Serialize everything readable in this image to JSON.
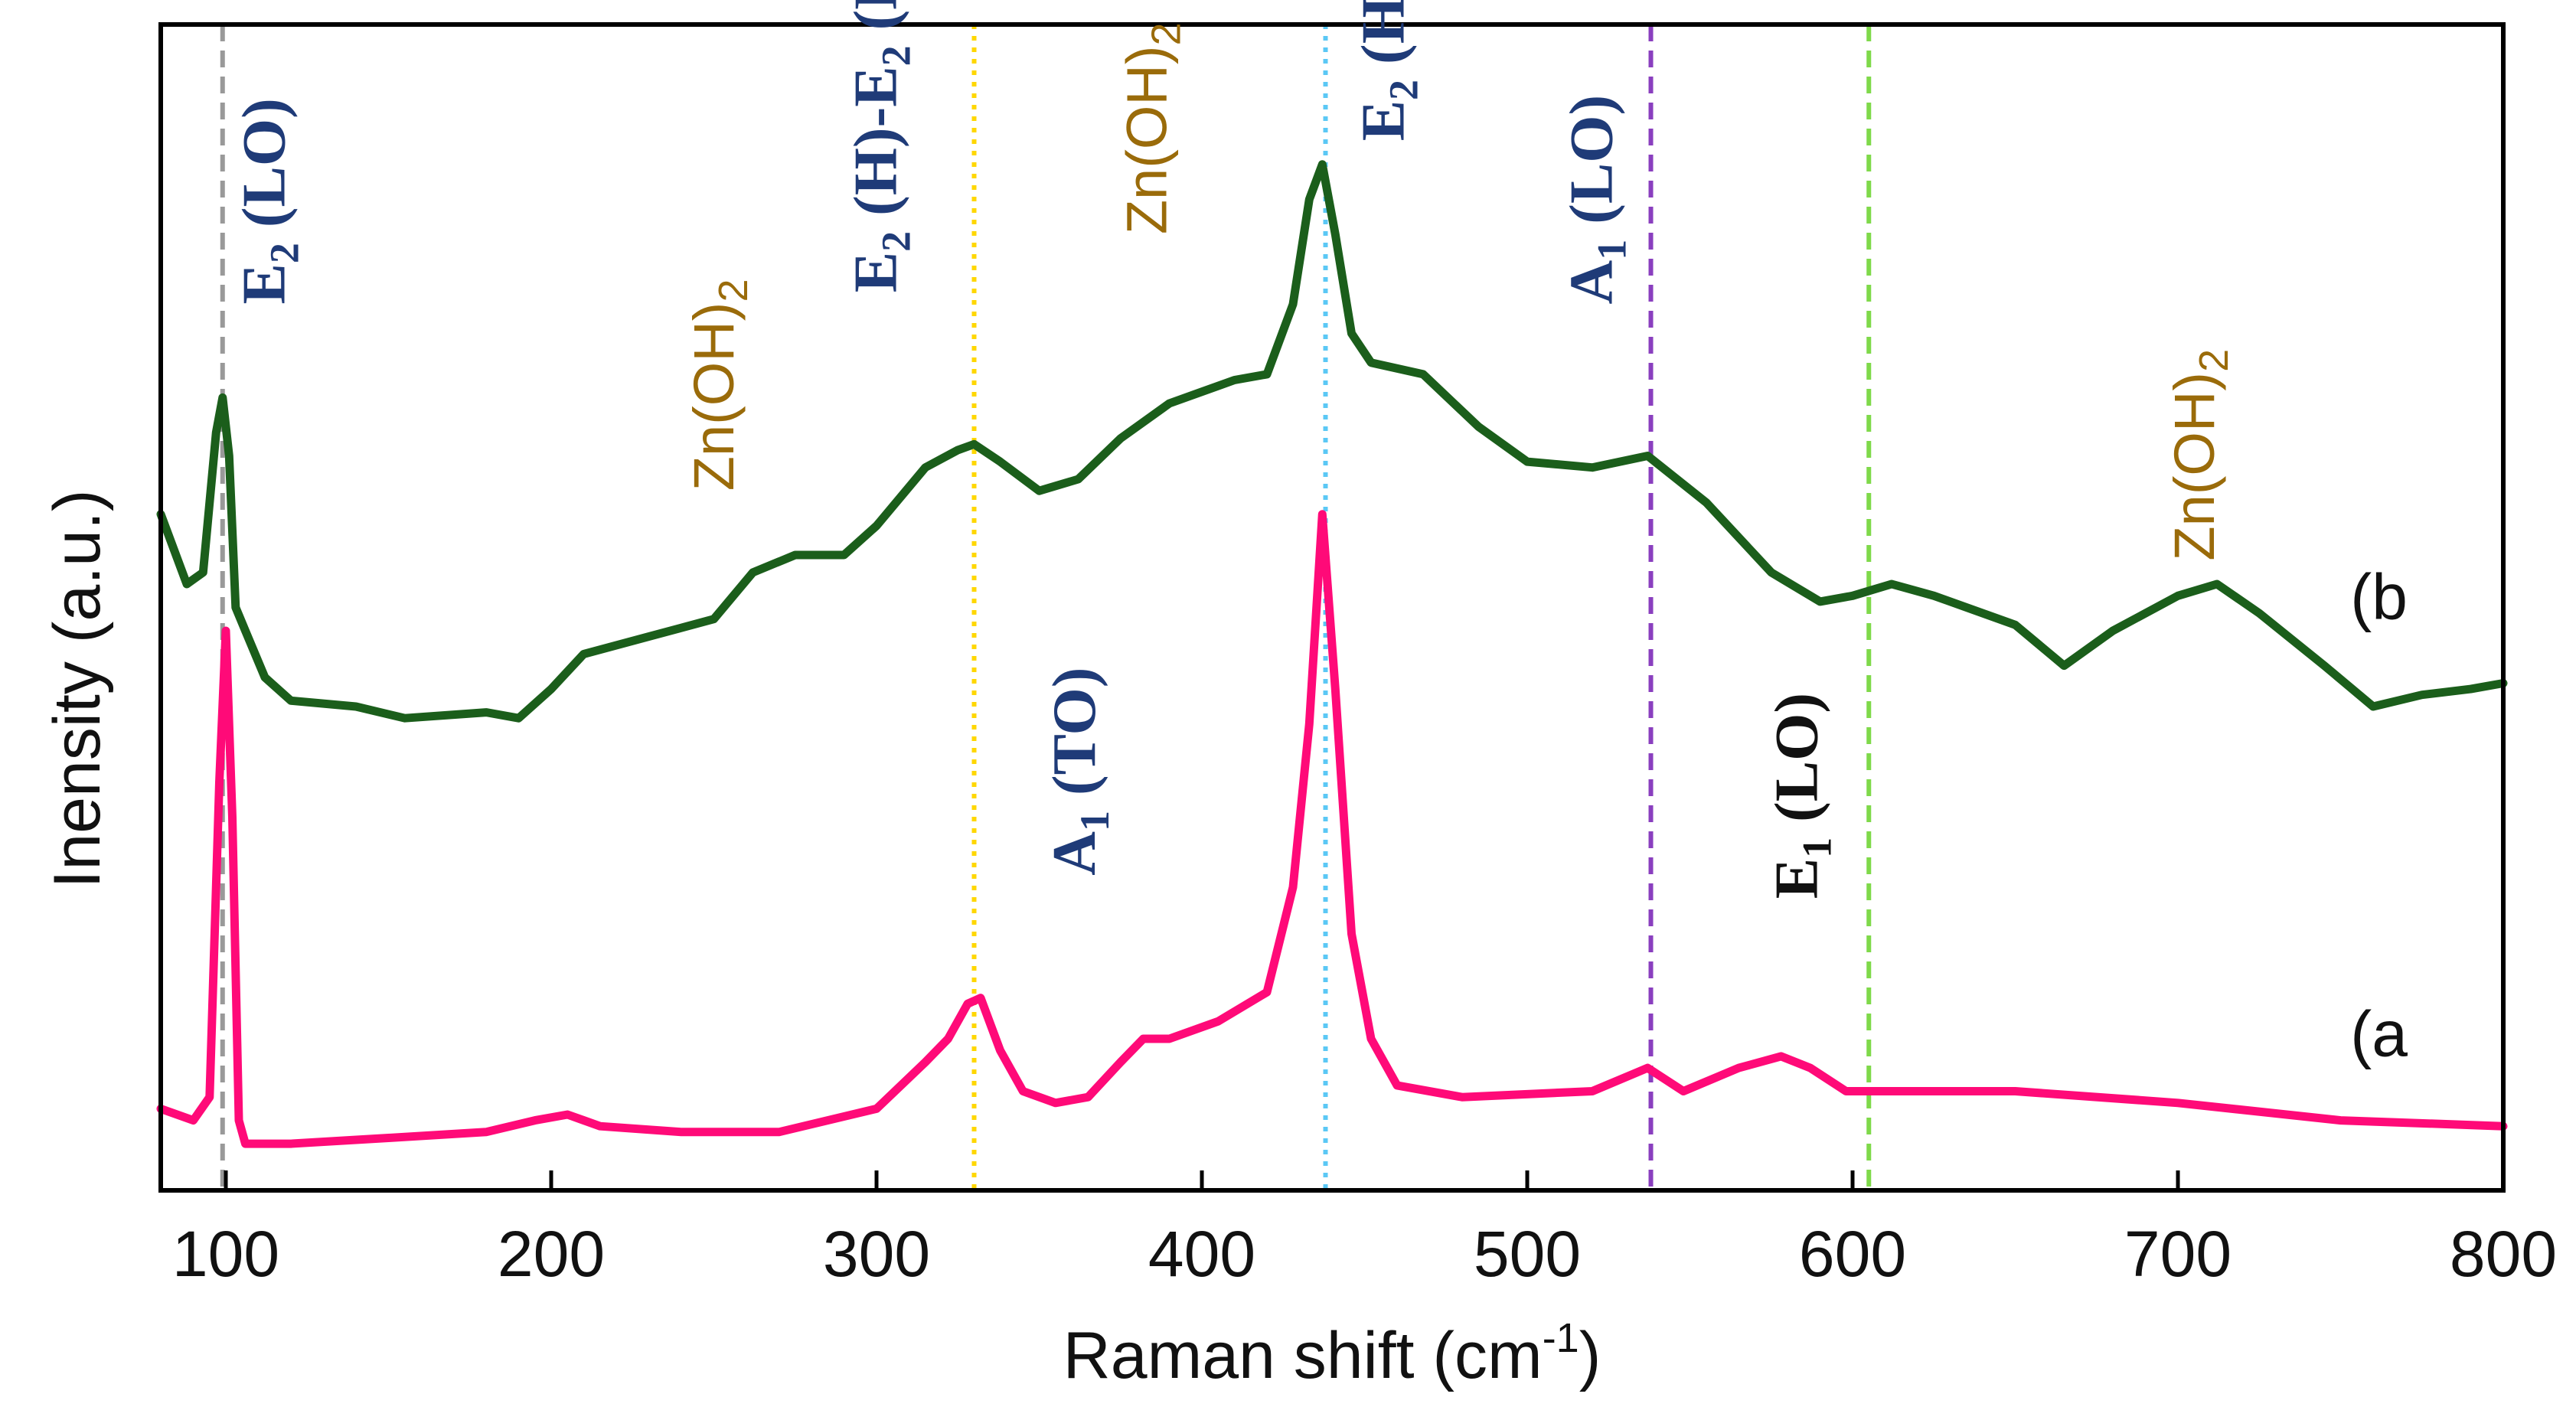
{
  "chart_data": {
    "type": "line",
    "title": "",
    "xlabel": "Raman shift (cm",
    "xlabel_sup": "-1",
    "xlabel_close": ")",
    "ylabel": "Inensity (a.u.)",
    "xlim": [
      80,
      800
    ],
    "ylim": [
      0,
      1
    ],
    "x_ticks": [
      100,
      200,
      300,
      400,
      500,
      600,
      700,
      800
    ],
    "x_tick_labels": [
      "100",
      "200",
      "300",
      "400",
      "500",
      "600",
      "700",
      "800"
    ],
    "y_ticks_shown": false,
    "series": [
      {
        "name": "(a",
        "color": "#ff0a78",
        "x": [
          80,
          90,
          95,
          98,
          100,
          102,
          104,
          106,
          120,
          150,
          180,
          195,
          205,
          215,
          240,
          270,
          300,
          315,
          322,
          328,
          332,
          338,
          345,
          355,
          365,
          375,
          382,
          390,
          405,
          420,
          428,
          433,
          437,
          441,
          446,
          452,
          460,
          480,
          520,
          537,
          548,
          565,
          578,
          587,
          598,
          610,
          650,
          700,
          750,
          800
        ],
        "y": [
          0.07,
          0.06,
          0.08,
          0.35,
          0.48,
          0.32,
          0.06,
          0.04,
          0.04,
          0.045,
          0.05,
          0.06,
          0.065,
          0.055,
          0.05,
          0.05,
          0.07,
          0.11,
          0.13,
          0.16,
          0.165,
          0.12,
          0.085,
          0.075,
          0.08,
          0.11,
          0.13,
          0.13,
          0.145,
          0.17,
          0.26,
          0.4,
          0.58,
          0.43,
          0.22,
          0.13,
          0.09,
          0.08,
          0.085,
          0.105,
          0.085,
          0.105,
          0.115,
          0.105,
          0.085,
          0.085,
          0.085,
          0.075,
          0.06,
          0.055
        ]
      },
      {
        "name": "(b",
        "color": "#1b5e1b",
        "x": [
          80,
          88,
          93,
          97,
          99,
          101,
          103,
          106,
          112,
          120,
          140,
          155,
          180,
          190,
          200,
          210,
          230,
          250,
          262,
          275,
          290,
          300,
          315,
          325,
          330,
          338,
          350,
          362,
          375,
          390,
          410,
          420,
          428,
          433,
          437,
          441,
          446,
          452,
          468,
          485,
          500,
          520,
          537,
          555,
          575,
          590,
          600,
          612,
          625,
          650,
          665,
          680,
          700,
          712,
          725,
          745,
          760,
          775,
          790,
          800
        ],
        "y": [
          0.58,
          0.52,
          0.53,
          0.65,
          0.68,
          0.63,
          0.5,
          0.48,
          0.44,
          0.42,
          0.415,
          0.405,
          0.41,
          0.405,
          0.43,
          0.46,
          0.475,
          0.49,
          0.53,
          0.545,
          0.545,
          0.57,
          0.62,
          0.635,
          0.64,
          0.625,
          0.6,
          0.61,
          0.645,
          0.675,
          0.695,
          0.7,
          0.76,
          0.85,
          0.88,
          0.82,
          0.735,
          0.71,
          0.7,
          0.655,
          0.625,
          0.62,
          0.63,
          0.59,
          0.53,
          0.505,
          0.51,
          0.52,
          0.51,
          0.485,
          0.45,
          0.48,
          0.51,
          0.52,
          0.495,
          0.45,
          0.415,
          0.425,
          0.43,
          0.435
        ]
      }
    ],
    "reference_lines": [
      {
        "x": 99,
        "color": "#999999",
        "style": "dashed"
      },
      {
        "x": 330,
        "color": "#ffd700",
        "style": "dotted"
      },
      {
        "x": 438,
        "color": "#5bc8f5",
        "style": "dotted"
      },
      {
        "x": 538,
        "color": "#8a3fbf",
        "style": "dashed"
      },
      {
        "x": 605,
        "color": "#7fd94a",
        "style": "dashed"
      }
    ],
    "mode_annotations": [
      {
        "main": "E",
        "sub": "2",
        "rest": " (LO)",
        "color": "#1f3b78",
        "x": 118,
        "y": 0.76
      },
      {
        "main": "E",
        "sub": "2",
        "rest": " (H)-E",
        "sub2": "2",
        "rest2": " (LO)",
        "color": "#1f3b78",
        "x": 306,
        "y": 0.77
      },
      {
        "main": "E",
        "sub": "2",
        "rest": " (H)",
        "color": "#1f3b78",
        "x": 462,
        "y": 0.9
      },
      {
        "main": "A",
        "sub": "1",
        "rest": " (LO)",
        "color": "#1f3b78",
        "x": 526,
        "y": 0.76
      },
      {
        "main": "A",
        "sub": "1",
        "rest": " (TO)",
        "color": "#1f3b78",
        "x": 367,
        "y": 0.27
      },
      {
        "main": "E",
        "sub": "1",
        "rest": " (LO)",
        "color": "#111111",
        "x": 589,
        "y": 0.25
      }
    ],
    "znoh_annotations": [
      {
        "text": "Zn(OH)",
        "sub": "2",
        "color": "#9a6b0a",
        "x": 256,
        "y": 0.6
      },
      {
        "text": "Zn(OH)",
        "sub": "2",
        "color": "#9a6b0a",
        "x": 389,
        "y": 0.82
      },
      {
        "text": "Zn(OH)",
        "sub": "2",
        "color": "#9a6b0a",
        "x": 711,
        "y": 0.54
      }
    ],
    "series_labels": [
      {
        "text": "(b",
        "x": 753,
        "y": 0.51
      },
      {
        "text": "(a",
        "x": 753,
        "y": 0.135
      }
    ]
  }
}
